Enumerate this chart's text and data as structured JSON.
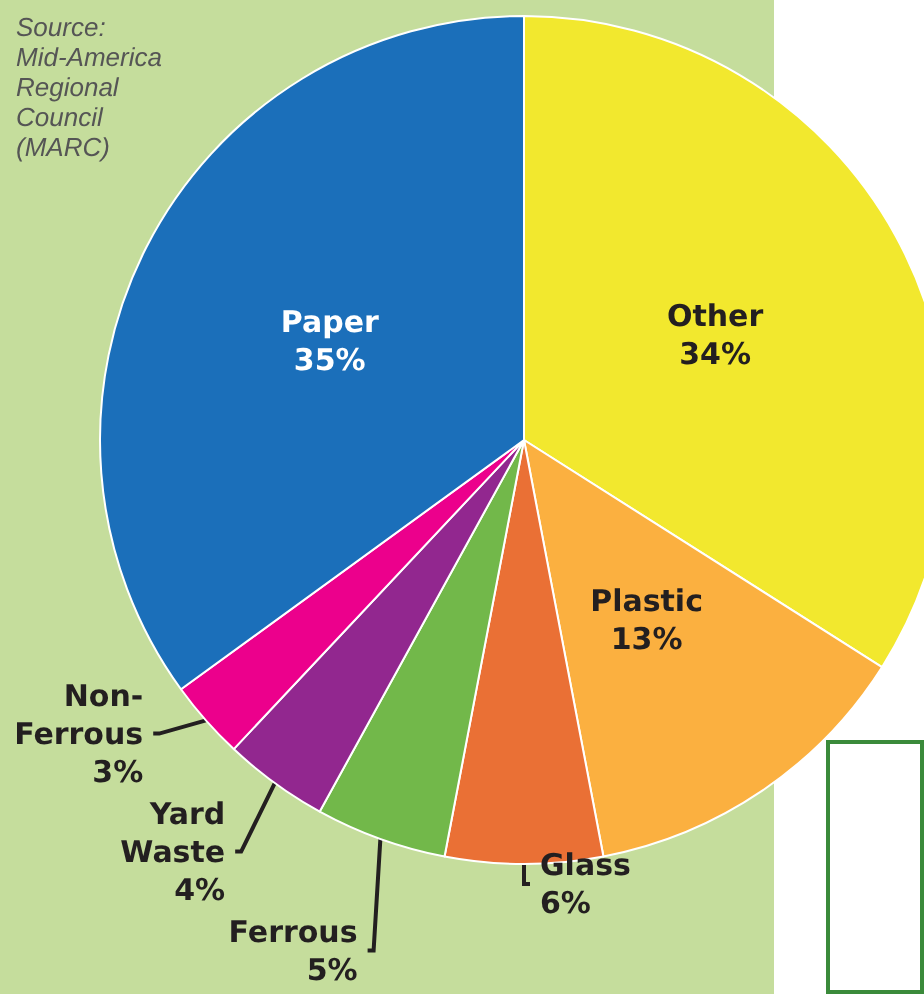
{
  "chart_data": {
    "type": "pie",
    "categories": [
      "Other",
      "Plastic",
      "Glass",
      "Ferrous",
      "Yard Waste",
      "Non-Ferrous",
      "Paper"
    ],
    "values": [
      34,
      13,
      6,
      5,
      4,
      3,
      35
    ],
    "value_labels": [
      "34%",
      "13%",
      "6%",
      "5%",
      "4%",
      "3%",
      "35%"
    ],
    "colors": [
      "#f2e82e",
      "#fbb040",
      "#ea7035",
      "#72b84a",
      "#92278f",
      "#ec008c",
      "#1b6fba"
    ],
    "annotations": [
      "Source:\nMid-America\nRegional\nCouncil\n(MARC)"
    ],
    "legend": false
  }
}
